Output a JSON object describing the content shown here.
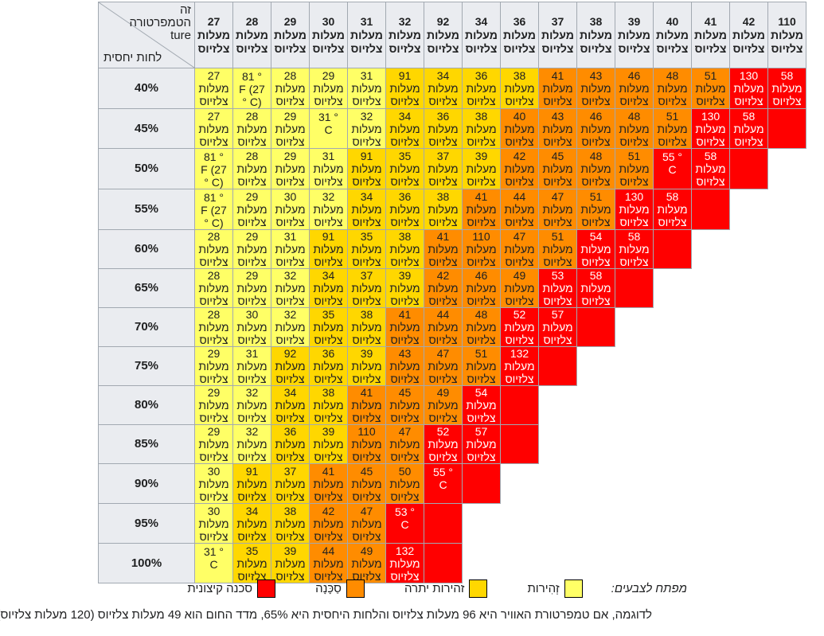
{
  "table": {
    "corner": {
      "temperature_label_lines": [
        "זה",
        "הטמפרטורה",
        "ture"
      ],
      "humidity_label": "לחות יחסית"
    },
    "unit_line1": "מעלות",
    "unit_line2": "צלזיוס",
    "columns": [
      "27",
      "28",
      "29",
      "30",
      "31",
      "32",
      "92",
      "34",
      "36",
      "37",
      "38",
      "39",
      "40",
      "41",
      "42",
      "110"
    ],
    "rows": [
      {
        "humidity": "40%",
        "cells": [
          {
            "v": "27",
            "c": "y"
          },
          {
            "l": [
              "81 °",
              "F (27",
              "° C)"
            ],
            "c": "y"
          },
          {
            "v": "28",
            "c": "y"
          },
          {
            "v": "29",
            "c": "y"
          },
          {
            "v": "31",
            "c": "y"
          },
          {
            "v": "91",
            "c": "g"
          },
          {
            "v": "34",
            "c": "g"
          },
          {
            "v": "36",
            "c": "g"
          },
          {
            "v": "38",
            "c": "g"
          },
          {
            "v": "41",
            "c": "o"
          },
          {
            "v": "43",
            "c": "o"
          },
          {
            "v": "46",
            "c": "o"
          },
          {
            "v": "48",
            "c": "o"
          },
          {
            "v": "51",
            "c": "o"
          },
          {
            "v": "130",
            "c": "r"
          },
          {
            "v": "58",
            "c": "r"
          }
        ]
      },
      {
        "humidity": "45%",
        "cells": [
          {
            "v": "27",
            "c": "y"
          },
          {
            "v": "28",
            "c": "y"
          },
          {
            "v": "29",
            "c": "y"
          },
          {
            "l": [
              "31 °",
              "C"
            ],
            "c": "y"
          },
          {
            "v": "32",
            "c": "y"
          },
          {
            "v": "34",
            "c": "g"
          },
          {
            "v": "36",
            "c": "g"
          },
          {
            "v": "38",
            "c": "g"
          },
          {
            "v": "40",
            "c": "o"
          },
          {
            "v": "43",
            "c": "o"
          },
          {
            "v": "46",
            "c": "o"
          },
          {
            "v": "48",
            "c": "o"
          },
          {
            "v": "51",
            "c": "o"
          },
          {
            "v": "130",
            "c": "r"
          },
          {
            "v": "58",
            "c": "r"
          },
          {
            "c": "r"
          }
        ]
      },
      {
        "humidity": "50%",
        "cells": [
          {
            "l": [
              "81 °",
              "F (27",
              "° C)"
            ],
            "c": "y"
          },
          {
            "v": "28",
            "c": "y"
          },
          {
            "v": "29",
            "c": "y"
          },
          {
            "v": "31",
            "c": "y"
          },
          {
            "v": "91",
            "c": "g"
          },
          {
            "v": "35",
            "c": "g"
          },
          {
            "v": "37",
            "c": "g"
          },
          {
            "v": "39",
            "c": "g"
          },
          {
            "v": "42",
            "c": "o"
          },
          {
            "v": "45",
            "c": "o"
          },
          {
            "v": "48",
            "c": "o"
          },
          {
            "v": "51",
            "c": "o"
          },
          {
            "l": [
              "55 °",
              "C"
            ],
            "c": "r"
          },
          {
            "v": "58",
            "c": "r"
          },
          {
            "c": "r"
          }
        ]
      },
      {
        "humidity": "55%",
        "cells": [
          {
            "l": [
              "81 °",
              "F (27",
              "° C)"
            ],
            "c": "y"
          },
          {
            "v": "29",
            "c": "y"
          },
          {
            "v": "30",
            "c": "y"
          },
          {
            "v": "32",
            "c": "y"
          },
          {
            "v": "34",
            "c": "g"
          },
          {
            "v": "36",
            "c": "g"
          },
          {
            "v": "38",
            "c": "g"
          },
          {
            "v": "41",
            "c": "o"
          },
          {
            "v": "44",
            "c": "o"
          },
          {
            "v": "47",
            "c": "o"
          },
          {
            "v": "51",
            "c": "o"
          },
          {
            "v": "130",
            "c": "r"
          },
          {
            "v": "58",
            "c": "r"
          },
          {
            "c": "r"
          }
        ]
      },
      {
        "humidity": "60%",
        "cells": [
          {
            "v": "28",
            "c": "y"
          },
          {
            "v": "29",
            "c": "y"
          },
          {
            "v": "31",
            "c": "y"
          },
          {
            "v": "91",
            "c": "g"
          },
          {
            "v": "35",
            "c": "g"
          },
          {
            "v": "38",
            "c": "g"
          },
          {
            "v": "41",
            "c": "o"
          },
          {
            "v": "110",
            "c": "o"
          },
          {
            "v": "47",
            "c": "o"
          },
          {
            "v": "51",
            "c": "o"
          },
          {
            "v": "54",
            "c": "r"
          },
          {
            "v": "58",
            "c": "r"
          },
          {
            "c": "r"
          }
        ]
      },
      {
        "humidity": "65%",
        "cells": [
          {
            "v": "28",
            "c": "y"
          },
          {
            "v": "29",
            "c": "y"
          },
          {
            "v": "32",
            "c": "y"
          },
          {
            "v": "34",
            "c": "g"
          },
          {
            "v": "37",
            "c": "g"
          },
          {
            "v": "39",
            "c": "g"
          },
          {
            "v": "42",
            "c": "o"
          },
          {
            "v": "46",
            "c": "o"
          },
          {
            "v": "49",
            "c": "o"
          },
          {
            "v": "53",
            "c": "r"
          },
          {
            "v": "58",
            "c": "r"
          },
          {
            "c": "r"
          }
        ]
      },
      {
        "humidity": "70%",
        "cells": [
          {
            "v": "28",
            "c": "y"
          },
          {
            "v": "30",
            "c": "y"
          },
          {
            "v": "32",
            "c": "y"
          },
          {
            "v": "35",
            "c": "g"
          },
          {
            "v": "38",
            "c": "g"
          },
          {
            "v": "41",
            "c": "o"
          },
          {
            "v": "44",
            "c": "o"
          },
          {
            "v": "48",
            "c": "o"
          },
          {
            "v": "52",
            "c": "r"
          },
          {
            "v": "57",
            "c": "r"
          },
          {
            "c": "r"
          }
        ]
      },
      {
        "humidity": "75%",
        "cells": [
          {
            "v": "29",
            "c": "y"
          },
          {
            "v": "31",
            "c": "y"
          },
          {
            "v": "92",
            "c": "g"
          },
          {
            "v": "36",
            "c": "g"
          },
          {
            "v": "39",
            "c": "g"
          },
          {
            "v": "43",
            "c": "o"
          },
          {
            "v": "47",
            "c": "o"
          },
          {
            "v": "51",
            "c": "o"
          },
          {
            "v": "132",
            "c": "r"
          },
          {
            "c": "r"
          }
        ]
      },
      {
        "humidity": "80%",
        "cells": [
          {
            "v": "29",
            "c": "y"
          },
          {
            "v": "32",
            "c": "y"
          },
          {
            "v": "34",
            "c": "g"
          },
          {
            "v": "38",
            "c": "g"
          },
          {
            "v": "41",
            "c": "o"
          },
          {
            "v": "45",
            "c": "o"
          },
          {
            "v": "49",
            "c": "o"
          },
          {
            "v": "54",
            "c": "r"
          },
          {
            "c": "r"
          }
        ]
      },
      {
        "humidity": "85%",
        "cells": [
          {
            "v": "29",
            "c": "y"
          },
          {
            "v": "32",
            "c": "y"
          },
          {
            "v": "36",
            "c": "g"
          },
          {
            "v": "39",
            "c": "g"
          },
          {
            "v": "110",
            "c": "o"
          },
          {
            "v": "47",
            "c": "o"
          },
          {
            "v": "52",
            "c": "r"
          },
          {
            "v": "57",
            "c": "r"
          },
          {
            "c": "r"
          }
        ]
      },
      {
        "humidity": "90%",
        "cells": [
          {
            "v": "30",
            "c": "y"
          },
          {
            "v": "91",
            "c": "g"
          },
          {
            "v": "37",
            "c": "g"
          },
          {
            "v": "41",
            "c": "o"
          },
          {
            "v": "45",
            "c": "o"
          },
          {
            "v": "50",
            "c": "o"
          },
          {
            "l": [
              "55 °",
              "C"
            ],
            "c": "r"
          },
          {
            "c": "r"
          }
        ]
      },
      {
        "humidity": "95%",
        "cells": [
          {
            "v": "30",
            "c": "y"
          },
          {
            "v": "34",
            "c": "g"
          },
          {
            "v": "38",
            "c": "g"
          },
          {
            "v": "42",
            "c": "o"
          },
          {
            "v": "47",
            "c": "o"
          },
          {
            "l": [
              "53 °",
              "C"
            ],
            "c": "r"
          },
          {
            "c": "r"
          }
        ]
      },
      {
        "humidity": "100%",
        "cells": [
          {
            "l": [
              "31 °",
              "C"
            ],
            "c": "y"
          },
          {
            "v": "35",
            "c": "g"
          },
          {
            "v": "39",
            "c": "g"
          },
          {
            "v": "44",
            "c": "o"
          },
          {
            "v": "49",
            "c": "o"
          },
          {
            "v": "132",
            "c": "r"
          },
          {
            "c": "r"
          }
        ]
      }
    ]
  },
  "legend": {
    "title": "מפתח לצבעים:",
    "items": [
      {
        "label": "זְהִירות",
        "color": "#ffff66"
      },
      {
        "label": "זהירות יתרה",
        "color": "#ffd700"
      },
      {
        "label": "סַכָּנָה",
        "color": "#ff8c00"
      },
      {
        "label": "סכנה קיצונית",
        "color": "#ff0000"
      }
    ]
  },
  "caption": "לדוגמה, אם טמפרטורת האוויר היא 96 מעלות צלזיוס והלחות היחסית היא 65%, מדד החום הוא 49 מעלות צלזיוס (120 מעלות צלזיוס)"
}
